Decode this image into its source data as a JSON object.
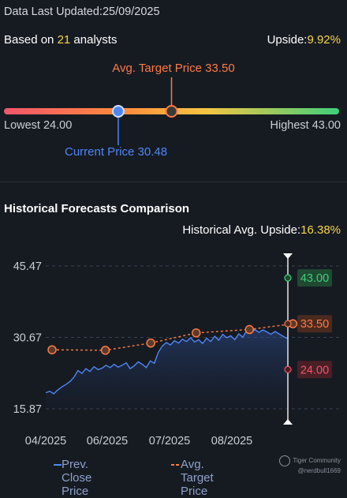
{
  "header": {
    "updated_prefix": "Data Last Updated:",
    "updated_date": "25/09/2025"
  },
  "consensus": {
    "based_on_prefix": "Based on ",
    "analyst_count": "21",
    "based_on_suffix": " analysts",
    "upside_label": "Upside:",
    "upside_value": "9.92%"
  },
  "price_range": {
    "avg_target_label": "Avg. Target Price 33.50",
    "lowest_label": "Lowest 24.00",
    "highest_label": "Highest 43.00",
    "current_label": "Current Price 30.48",
    "lowest": 24.0,
    "highest": 43.0,
    "current": 30.48,
    "avg_target": 33.5,
    "colors": {
      "low": "#f2556b",
      "mid": "#f5c542",
      "high": "#3fcf7a",
      "current": "#4f86f7",
      "target": "#ff7a45"
    }
  },
  "historical": {
    "title": "Historical Forecasts Comparison",
    "avg_upside_label": "Historical Avg. Upside:",
    "avg_upside_value": "16.38%"
  },
  "chart_data": {
    "type": "line",
    "y_ticks": [
      "45.47",
      "30.67",
      "15.87"
    ],
    "ylim": [
      15.87,
      45.47
    ],
    "x_ticks": [
      "04/2025",
      "06/2025",
      "07/2025",
      "08/2025"
    ],
    "series": [
      {
        "name": "Prev. Close Price",
        "color": "#4f86f7",
        "values": [
          19.2,
          19.5,
          19.0,
          19.8,
          20.4,
          20.9,
          21.5,
          22.4,
          23.8,
          23.2,
          24.2,
          23.6,
          24.6,
          24.0,
          24.3,
          24.9,
          24.4,
          25.1,
          24.5,
          24.9,
          25.4,
          24.2,
          24.8,
          25.6,
          25.1,
          24.4,
          25.8,
          25.3,
          27.6,
          28.9,
          29.6,
          29.1,
          30.0,
          29.5,
          30.3,
          29.8,
          30.6,
          29.7,
          30.2,
          29.4,
          30.5,
          29.8,
          30.9,
          30.1,
          31.3,
          30.6,
          31.0,
          30.2,
          31.4,
          30.7,
          32.1,
          31.5,
          32.3,
          31.7,
          32.2,
          31.8,
          31.3,
          31.9,
          31.4,
          30.9,
          30.48
        ]
      },
      {
        "name": "Avg. Target Price",
        "color": "#ff7a45",
        "points": [
          [
            0,
            28.1
          ],
          [
            0.27,
            28.0
          ],
          [
            0.5,
            29.5
          ],
          [
            0.73,
            31.6
          ],
          [
            1.0,
            32.3
          ],
          [
            1.22,
            33.5
          ]
        ]
      }
    ],
    "latest_markers": [
      {
        "value": 43.0,
        "label": "43.00",
        "color": "#3fcf7a",
        "bg": "#1f4a32"
      },
      {
        "value": 33.5,
        "label": "33.50",
        "color": "#ff7a45",
        "bg": "#4a2a1f"
      },
      {
        "value": 24.0,
        "label": "24.00",
        "color": "#f2556b",
        "bg": "#4a1f26"
      }
    ],
    "legend": [
      {
        "label": "Prev. Close Price",
        "color": "#4f86f7"
      },
      {
        "label": "Avg. Target Price",
        "color": "#ff7a45"
      }
    ]
  },
  "watermark": {
    "brand": "Tiger Community",
    "handle": "@nerdbull1669"
  }
}
